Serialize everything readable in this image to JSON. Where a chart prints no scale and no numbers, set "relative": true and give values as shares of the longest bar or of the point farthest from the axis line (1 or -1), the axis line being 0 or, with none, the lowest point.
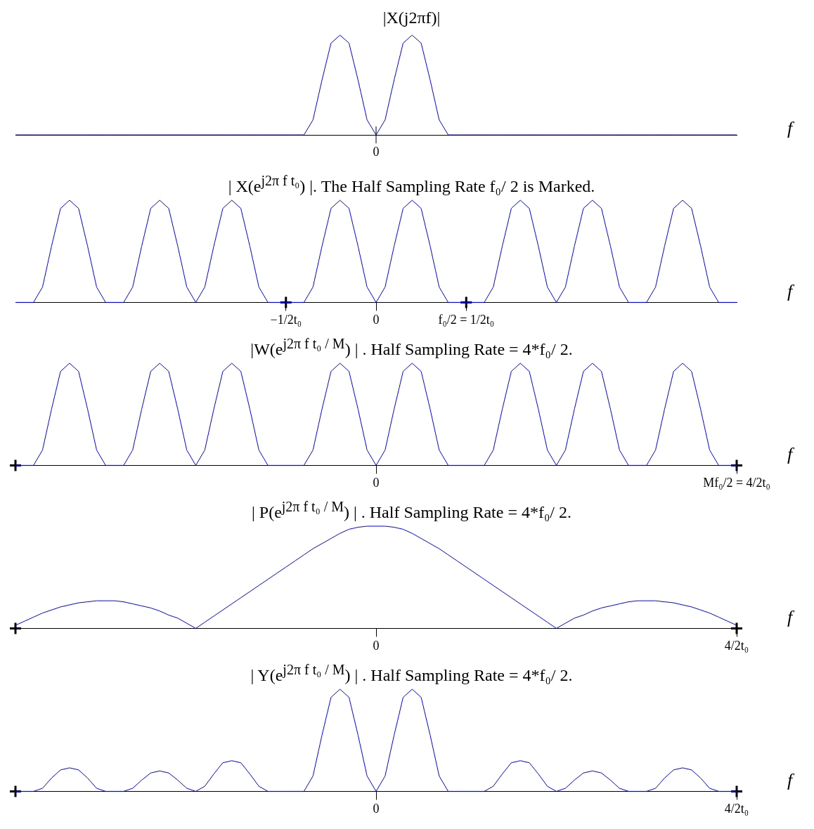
{
  "chart_data": [
    {
      "type": "line",
      "title": "|X(j2πf)|",
      "xlabel": "f",
      "relative": true,
      "grid": false,
      "legend": false,
      "marker": "none",
      "categories": [
        null,
        null,
        null,
        null,
        null,
        null,
        null,
        null,
        null,
        null,
        null,
        null,
        null,
        null,
        null,
        null,
        null,
        null,
        null,
        null,
        null,
        null,
        null,
        null,
        null,
        null,
        null,
        null,
        null,
        null,
        null,
        null,
        null,
        null,
        null,
        null,
        null,
        null,
        null,
        null,
        null,
        null,
        null,
        null,
        null,
        null,
        null,
        null,
        null,
        null,
        null,
        null,
        null,
        null,
        null,
        null,
        null,
        null,
        null,
        null,
        null,
        null,
        null,
        null,
        null,
        null,
        null,
        null,
        null,
        null,
        null,
        null,
        null,
        null,
        null,
        null,
        null,
        null,
        null,
        null,
        null
      ],
      "annotations": [
        "0"
      ],
      "series": [
        {
          "color": "#0000ff",
          "values": [
            0,
            0,
            0,
            0,
            0,
            0,
            0,
            0,
            0,
            0,
            0,
            0,
            0,
            0,
            0,
            0,
            0,
            0,
            0,
            0,
            0,
            0,
            0,
            0,
            0,
            0,
            0,
            0,
            0,
            0,
            0,
            0,
            0,
            0.15,
            0.55,
            0.92,
            1,
            0.92,
            0.55,
            0.15,
            0,
            0.15,
            0.55,
            0.92,
            1,
            0.92,
            0.55,
            0.15,
            0,
            0,
            0,
            0,
            0,
            0,
            0,
            0,
            0,
            0,
            0,
            0,
            0,
            0,
            0,
            0,
            0,
            0,
            0,
            0,
            0,
            0,
            0,
            0,
            0,
            0,
            0,
            0,
            0,
            0,
            0,
            0,
            0
          ]
        }
      ]
    },
    {
      "type": "line",
      "title": "| X(e$^{j2π f t₀}$) |. The Half Sampling Rate f₀/ 2 is Marked.",
      "xlabel": "f",
      "relative": true,
      "grid": false,
      "legend": false,
      "marker": "none",
      "categories": [
        null,
        null,
        null,
        null,
        null,
        null,
        null,
        null,
        null,
        null,
        null,
        null,
        null,
        null,
        null,
        null,
        null,
        null,
        null,
        null,
        null,
        null,
        null,
        null,
        null,
        null,
        null,
        null,
        null,
        null,
        "−1/2t₀",
        null,
        null,
        null,
        null,
        null,
        null,
        null,
        null,
        null,
        "0",
        null,
        null,
        null,
        null,
        null,
        null,
        null,
        null,
        null,
        "f₀/2 = 1/2t₀",
        null,
        null,
        null,
        null,
        null,
        null,
        null,
        null,
        null,
        null,
        null,
        null,
        null,
        null,
        null,
        null,
        null,
        null,
        null,
        null,
        null,
        null,
        null,
        null,
        null,
        null,
        null,
        null,
        null,
        null
      ],
      "series": [
        {
          "color": "#0000ff",
          "values": [
            0,
            0,
            0,
            0.15,
            0.55,
            0.92,
            1,
            0.92,
            0.55,
            0.15,
            0,
            0,
            0,
            0.15,
            0.55,
            0.92,
            1,
            0.92,
            0.55,
            0.15,
            0,
            0.15,
            0.55,
            0.92,
            1,
            0.92,
            0.55,
            0.15,
            0,
            0,
            0,
            0,
            0,
            0.15,
            0.55,
            0.92,
            1,
            0.92,
            0.55,
            0.15,
            0,
            0.15,
            0.55,
            0.92,
            1,
            0.92,
            0.55,
            0.15,
            0,
            0,
            0,
            0,
            0,
            0.15,
            0.55,
            0.92,
            1,
            0.92,
            0.55,
            0.15,
            0,
            0.15,
            0.55,
            0.92,
            1,
            0.92,
            0.55,
            0.15,
            0,
            0,
            0,
            0.15,
            0.55,
            0.92,
            1,
            0.92,
            0.55,
            0.15,
            0,
            0,
            0
          ]
        },
        {
          "type": "scatter",
          "color": "#000000",
          "marker": "cross",
          "values": [
            null,
            null,
            null,
            null,
            null,
            null,
            null,
            null,
            null,
            null,
            null,
            null,
            null,
            null,
            null,
            null,
            null,
            null,
            null,
            null,
            null,
            null,
            null,
            null,
            null,
            null,
            null,
            null,
            null,
            null,
            0,
            null,
            null,
            null,
            null,
            null,
            null,
            null,
            null,
            null,
            null,
            null,
            null,
            null,
            null,
            null,
            null,
            null,
            null,
            null,
            0,
            null,
            null,
            null,
            null,
            null,
            null,
            null,
            null,
            null,
            null,
            null,
            null,
            null,
            null,
            null,
            null,
            null,
            null,
            null,
            null,
            null,
            null,
            null,
            null,
            null,
            null,
            null,
            null,
            null,
            null
          ]
        }
      ]
    },
    {
      "type": "line",
      "title": "|W(e$^{j2π f t₀ / M}$) | . Half Sampling Rate = 4*f₀/ 2.",
      "xlabel": "f",
      "relative": true,
      "grid": false,
      "legend": false,
      "marker": "none",
      "categories": [
        null,
        null,
        null,
        null,
        null,
        null,
        null,
        null,
        null,
        null,
        null,
        null,
        null,
        null,
        null,
        null,
        null,
        null,
        null,
        null,
        null,
        null,
        null,
        null,
        null,
        null,
        null,
        null,
        null,
        null,
        null,
        null,
        null,
        null,
        null,
        null,
        null,
        null,
        null,
        null,
        "0",
        null,
        null,
        null,
        null,
        null,
        null,
        null,
        null,
        null,
        null,
        null,
        null,
        null,
        null,
        null,
        null,
        null,
        null,
        null,
        null,
        null,
        null,
        null,
        null,
        null,
        null,
        null,
        null,
        null,
        null,
        null,
        null,
        null,
        null,
        null,
        null,
        null,
        null,
        null,
        "Mf₀/2 = 4/2t₀"
      ],
      "series": [
        {
          "color": "#0000ff",
          "values": [
            0,
            0,
            0,
            0.15,
            0.55,
            0.92,
            1,
            0.92,
            0.55,
            0.15,
            0,
            0,
            0,
            0.15,
            0.55,
            0.92,
            1,
            0.92,
            0.55,
            0.15,
            0,
            0.15,
            0.55,
            0.92,
            1,
            0.92,
            0.55,
            0.15,
            0,
            0,
            0,
            0,
            0,
            0.15,
            0.55,
            0.92,
            1,
            0.92,
            0.55,
            0.15,
            0,
            0.15,
            0.55,
            0.92,
            1,
            0.92,
            0.55,
            0.15,
            0,
            0,
            0,
            0,
            0,
            0.15,
            0.55,
            0.92,
            1,
            0.92,
            0.55,
            0.15,
            0,
            0.15,
            0.55,
            0.92,
            1,
            0.92,
            0.55,
            0.15,
            0,
            0,
            0,
            0.15,
            0.55,
            0.92,
            1,
            0.92,
            0.55,
            0.15,
            0,
            0,
            0
          ]
        },
        {
          "type": "scatter",
          "color": "#000000",
          "marker": "cross",
          "values": [
            0,
            null,
            null,
            null,
            null,
            null,
            null,
            null,
            null,
            null,
            null,
            null,
            null,
            null,
            null,
            null,
            null,
            null,
            null,
            null,
            null,
            null,
            null,
            null,
            null,
            null,
            null,
            null,
            null,
            null,
            null,
            null,
            null,
            null,
            null,
            null,
            null,
            null,
            null,
            null,
            null,
            null,
            null,
            null,
            null,
            null,
            null,
            null,
            null,
            null,
            null,
            null,
            null,
            null,
            null,
            null,
            null,
            null,
            null,
            null,
            null,
            null,
            null,
            null,
            null,
            null,
            null,
            null,
            null,
            null,
            null,
            null,
            null,
            null,
            null,
            null,
            null,
            null,
            null,
            null,
            0
          ]
        }
      ]
    },
    {
      "type": "line",
      "title": "| P(e$^{j2π f t₀ / M}$) | . Half Sampling Rate = 4*f₀/ 2.",
      "xlabel": "f",
      "relative": true,
      "grid": false,
      "legend": false,
      "marker": "none",
      "categories": [
        null,
        null,
        null,
        null,
        null,
        null,
        null,
        null,
        null,
        null,
        null,
        null,
        null,
        null,
        null,
        null,
        null,
        null,
        null,
        null,
        null,
        null,
        null,
        null,
        null,
        null,
        null,
        null,
        null,
        null,
        null,
        null,
        null,
        null,
        null,
        null,
        null,
        null,
        null,
        null,
        "0",
        null,
        null,
        null,
        null,
        null,
        null,
        null,
        null,
        null,
        null,
        null,
        null,
        null,
        null,
        null,
        null,
        null,
        null,
        null,
        null,
        null,
        null,
        null,
        null,
        null,
        null,
        null,
        null,
        null,
        null,
        null,
        null,
        null,
        null,
        null,
        null,
        null,
        null,
        null,
        "4/2t₀"
      ],
      "series": [
        {
          "color": "#0000ff",
          "values": [
            0.03,
            0.07,
            0.11,
            0.15,
            0.18,
            0.21,
            0.23,
            0.25,
            0.26,
            0.27,
            0.27,
            0.27,
            0.26,
            0.24,
            0.22,
            0.2,
            0.17,
            0.13,
            0.1,
            0.05,
            0,
            0.06,
            0.12,
            0.18,
            0.24,
            0.3,
            0.36,
            0.42,
            0.48,
            0.54,
            0.6,
            0.66,
            0.72,
            0.78,
            0.83,
            0.88,
            0.93,
            0.97,
            0.99,
            1,
            1,
            1,
            0.99,
            0.97,
            0.93,
            0.88,
            0.83,
            0.78,
            0.72,
            0.66,
            0.6,
            0.54,
            0.48,
            0.42,
            0.36,
            0.3,
            0.24,
            0.18,
            0.12,
            0.06,
            0,
            0.05,
            0.1,
            0.13,
            0.17,
            0.2,
            0.22,
            0.24,
            0.26,
            0.27,
            0.27,
            0.27,
            0.26,
            0.25,
            0.23,
            0.21,
            0.18,
            0.15,
            0.11,
            0.07,
            0.03
          ]
        },
        {
          "type": "scatter",
          "color": "#000000",
          "marker": "cross",
          "values": [
            0,
            null,
            null,
            null,
            null,
            null,
            null,
            null,
            null,
            null,
            null,
            null,
            null,
            null,
            null,
            null,
            null,
            null,
            null,
            null,
            null,
            null,
            null,
            null,
            null,
            null,
            null,
            null,
            null,
            null,
            null,
            null,
            null,
            null,
            null,
            null,
            null,
            null,
            null,
            null,
            null,
            null,
            null,
            null,
            null,
            null,
            null,
            null,
            null,
            null,
            null,
            null,
            null,
            null,
            null,
            null,
            null,
            null,
            null,
            null,
            null,
            null,
            null,
            null,
            null,
            null,
            null,
            null,
            null,
            null,
            null,
            null,
            null,
            null,
            null,
            null,
            null,
            null,
            null,
            null,
            0
          ]
        }
      ]
    },
    {
      "type": "line",
      "title": "| Y(e$^{j2π f t₀ / M}$) | . Half Sampling Rate = 4*f₀/ 2.",
      "xlabel": "f",
      "relative": true,
      "grid": false,
      "legend": false,
      "marker": "none",
      "categories": [
        null,
        null,
        null,
        null,
        null,
        null,
        null,
        null,
        null,
        null,
        null,
        null,
        null,
        null,
        null,
        null,
        null,
        null,
        null,
        null,
        null,
        null,
        null,
        null,
        null,
        null,
        null,
        null,
        null,
        null,
        null,
        null,
        null,
        null,
        null,
        null,
        null,
        null,
        null,
        null,
        "0",
        null,
        null,
        null,
        null,
        null,
        null,
        null,
        null,
        null,
        null,
        null,
        null,
        null,
        null,
        null,
        null,
        null,
        null,
        null,
        null,
        null,
        null,
        null,
        null,
        null,
        null,
        null,
        null,
        null,
        null,
        null,
        null,
        null,
        null,
        null,
        null,
        null,
        null,
        null,
        "4/2t₀"
      ],
      "series": [
        {
          "color": "#0000ff",
          "values": [
            0,
            0,
            0,
            0.03,
            0.13,
            0.21,
            0.23,
            0.21,
            0.13,
            0.03,
            0,
            0,
            0,
            0.03,
            0.11,
            0.18,
            0.2,
            0.18,
            0.11,
            0.03,
            0,
            0.05,
            0.17,
            0.28,
            0.3,
            0.28,
            0.17,
            0.05,
            0,
            0,
            0,
            0,
            0,
            0.15,
            0.55,
            0.92,
            1,
            0.92,
            0.55,
            0.15,
            0,
            0.15,
            0.55,
            0.92,
            1,
            0.92,
            0.55,
            0.15,
            0,
            0,
            0,
            0,
            0,
            0.05,
            0.17,
            0.28,
            0.3,
            0.28,
            0.17,
            0.05,
            0,
            0.03,
            0.11,
            0.18,
            0.2,
            0.18,
            0.11,
            0.03,
            0,
            0,
            0,
            0.03,
            0.13,
            0.21,
            0.23,
            0.21,
            0.13,
            0.03,
            0,
            0,
            0
          ]
        },
        {
          "type": "scatter",
          "color": "#000000",
          "marker": "cross",
          "values": [
            0,
            null,
            null,
            null,
            null,
            null,
            null,
            null,
            null,
            null,
            null,
            null,
            null,
            null,
            null,
            null,
            null,
            null,
            null,
            null,
            null,
            null,
            null,
            null,
            null,
            null,
            null,
            null,
            null,
            null,
            null,
            null,
            null,
            null,
            null,
            null,
            null,
            null,
            null,
            null,
            null,
            null,
            null,
            null,
            null,
            null,
            null,
            null,
            null,
            null,
            null,
            null,
            null,
            null,
            null,
            null,
            null,
            null,
            null,
            null,
            null,
            null,
            null,
            null,
            null,
            null,
            null,
            null,
            null,
            null,
            null,
            null,
            null,
            null,
            null,
            null,
            null,
            null,
            null,
            null,
            0
          ]
        }
      ]
    }
  ]
}
